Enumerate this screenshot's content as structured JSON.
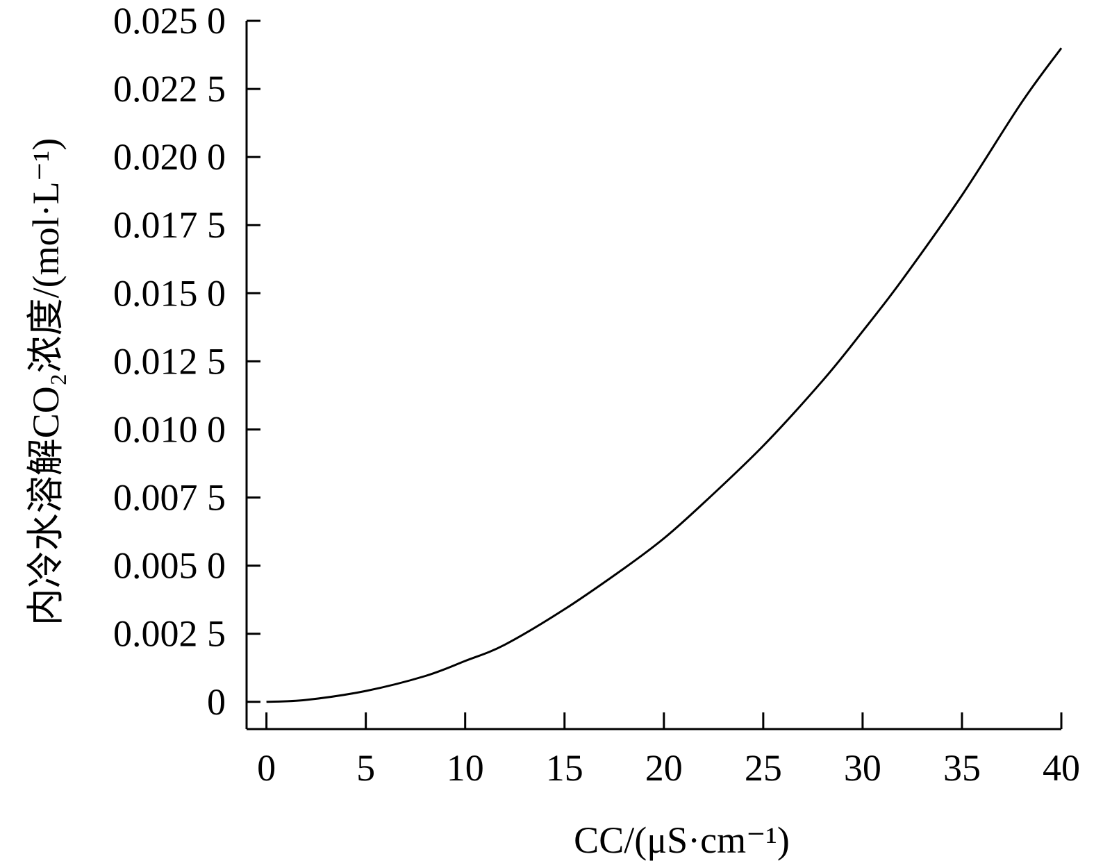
{
  "chart_data": {
    "type": "line",
    "title": "",
    "xlabel": "CC/(μS·cm⁻¹)",
    "ylabel": "内冷水溶解CO₂浓度/(mol·L⁻¹)",
    "xlim": [
      -1,
      40
    ],
    "ylim": [
      -0.001,
      0.025
    ],
    "x_ticks": [
      0,
      5,
      10,
      15,
      20,
      25,
      30,
      35,
      40
    ],
    "x_tick_labels": [
      "0",
      "5",
      "10",
      "15",
      "20",
      "25",
      "30",
      "35",
      "40"
    ],
    "y_ticks": [
      0,
      0.0025,
      0.005,
      0.0075,
      0.01,
      0.0125,
      0.015,
      0.0175,
      0.02,
      0.0225,
      0.025
    ],
    "y_tick_labels": [
      "0",
      "0.002 5",
      "0.005 0",
      "0.007 5",
      "0.010 0",
      "0.012 5",
      "0.015 0",
      "0.017 5",
      "0.020 0",
      "0.022 5",
      "0.025 0"
    ],
    "grid": false,
    "legend": "none",
    "series": [
      {
        "color": "#000000",
        "x": [
          0,
          2,
          5,
          8,
          10,
          12,
          15,
          18,
          20,
          22,
          25,
          28,
          30,
          32,
          35,
          38,
          40
        ],
        "y": [
          0,
          7e-05,
          0.0004,
          0.00095,
          0.0015,
          0.0021,
          0.0034,
          0.0049,
          0.006,
          0.0073,
          0.0094,
          0.0118,
          0.0136,
          0.0155,
          0.0186,
          0.022,
          0.024
        ]
      }
    ]
  }
}
